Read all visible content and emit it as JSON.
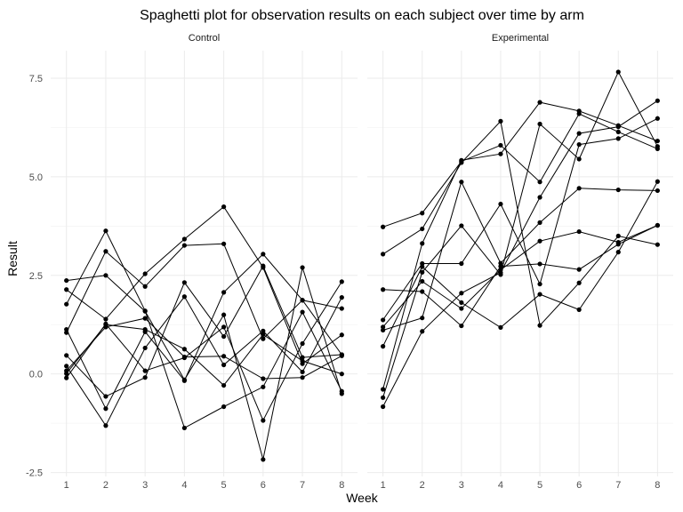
{
  "chart_data": {
    "type": "line",
    "title": "Spaghetti plot for observation results on each subject over time by arm",
    "xlabel": "Week",
    "ylabel": "Result",
    "x": [
      1,
      2,
      3,
      4,
      5,
      6,
      7,
      8
    ],
    "x_ticks": [
      "1",
      "2",
      "3",
      "4",
      "5",
      "6",
      "7",
      "8"
    ],
    "xlim": [
      0.6,
      8.4
    ],
    "ylim": [
      -2.6,
      8.2
    ],
    "y_ticks": [
      -2.5,
      0.0,
      2.5,
      5.0,
      7.5
    ],
    "y_tick_labels": [
      "-2.5",
      "0.0",
      "2.5",
      "5.0",
      "7.5"
    ],
    "grid": true,
    "facets": [
      {
        "label": "Control",
        "series": [
          {
            "values": [
              0.2,
              -1.31,
              0.66,
              1.96,
              0.23,
              1.09,
              0.05,
              1.94
            ]
          },
          {
            "values": [
              1.13,
              -0.88,
              1.07,
              -0.17,
              2.07,
              3.04,
              1.87,
              0.49
            ]
          },
          {
            "values": [
              1.77,
              3.63,
              1.6,
              -1.37,
              -0.83,
              -0.33,
              1.57,
              -0.44
            ]
          },
          {
            "values": [
              1.05,
              3.11,
              2.22,
              3.26,
              3.3,
              0.89,
              1.87,
              1.66
            ]
          },
          {
            "values": [
              0.47,
              -0.57,
              -0.09,
              2.32,
              0.95,
              2.74,
              0.42,
              0.49
            ]
          },
          {
            "values": [
              2.37,
              2.5,
              1.59,
              -0.15,
              1.5,
              -2.17,
              2.7,
              -0.5
            ]
          },
          {
            "values": [
              -0.1,
              1.27,
              0.08,
              0.41,
              1.19,
              -1.18,
              0.77,
              2.34
            ]
          },
          {
            "values": [
              0.08,
              1.19,
              1.41,
              0.43,
              0.45,
              -0.12,
              -0.09,
              0.46
            ]
          },
          {
            "values": [
              2.14,
              1.39,
              2.54,
              3.42,
              4.24,
              2.7,
              0.26,
              0.99
            ]
          },
          {
            "values": [
              0.01,
              1.25,
              1.13,
              0.63,
              -0.29,
              1.0,
              0.33,
              0.0
            ]
          }
        ]
      },
      {
        "label": "Experimental",
        "series": [
          {
            "values": [
              3.73,
              4.08,
              5.39,
              5.8,
              4.87,
              6.6,
              6.14,
              5.71
            ]
          },
          {
            "values": [
              3.04,
              3.68,
              5.36,
              6.41,
              1.23,
              2.31,
              3.5,
              3.28
            ]
          },
          {
            "values": [
              -0.39,
              3.31,
              5.42,
              5.58,
              6.89,
              6.67,
              6.3,
              5.91
            ]
          },
          {
            "values": [
              -0.83,
              1.08,
              2.05,
              2.57,
              4.48,
              6.1,
              6.27,
              6.93
            ]
          },
          {
            "values": [
              1.37,
              2.8,
              2.8,
              4.31,
              2.28,
              5.82,
              5.97,
              6.48
            ]
          },
          {
            "values": [
              1.19,
              2.35,
              1.66,
              2.64,
              3.37,
              3.61,
              3.34,
              3.77
            ]
          },
          {
            "values": [
              -0.6,
              2.58,
              3.76,
              2.52,
              6.34,
              5.45,
              7.66,
              5.77
            ]
          },
          {
            "values": [
              0.7,
              2.72,
              1.81,
              1.18,
              2.02,
              1.63,
              3.09,
              4.88
            ]
          },
          {
            "values": [
              2.14,
              2.09,
              1.22,
              2.73,
              2.79,
              2.65,
              3.29,
              3.77
            ]
          },
          {
            "values": [
              1.11,
              1.42,
              4.87,
              2.81,
              3.84,
              4.71,
              4.67,
              4.65
            ]
          }
        ]
      }
    ]
  }
}
